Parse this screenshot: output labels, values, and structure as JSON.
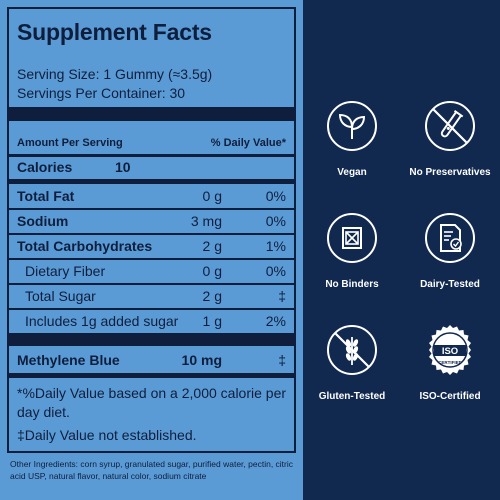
{
  "facts": {
    "title": "Supplement Facts",
    "serving_size": "Serving Size: 1 Gummy (≈3.5g)",
    "servings_per_container": "Servings Per Container: 30",
    "amount_per_serving": "Amount Per Serving",
    "daily_value_header": "% Daily Value*",
    "calories_label": "Calories",
    "calories_value": "10",
    "rows": [
      {
        "name": "Total Fat",
        "amount": "0 g",
        "dv": "0%"
      },
      {
        "name": "Sodium",
        "amount": "3 mg",
        "dv": "0%"
      },
      {
        "name": "Total Carbohydrates",
        "amount": "2 g",
        "dv": "1%"
      },
      {
        "name": "Dietary Fiber",
        "amount": "0 g",
        "dv": "0%"
      },
      {
        "name": "Total Sugar",
        "amount": "2 g",
        "dv": "‡"
      },
      {
        "name": "Includes 1g added sugar",
        "amount": "1 g",
        "dv": "2%"
      }
    ],
    "active": {
      "name": "Methylene Blue",
      "amount": "10 mg",
      "dv": "‡"
    },
    "footnote_1": "*%Daily Value based on a 2,000 calorie per day diet.",
    "footnote_2": "‡Daily Value not established.",
    "ingredients": "Other Ingredients: corn syrup, granulated sugar, purified water, pectin, citric acid USP, natural flavor, natural color, sodium citrate"
  },
  "badges": [
    {
      "label": "Vegan",
      "icon": "leaf-icon"
    },
    {
      "label": "No Preservatives",
      "icon": "no-test-tube-icon"
    },
    {
      "label": "No Binders",
      "icon": "no-binders-icon"
    },
    {
      "label": "Dairy-Tested",
      "icon": "document-check-icon"
    },
    {
      "label": "Gluten-Tested",
      "icon": "no-wheat-icon"
    },
    {
      "label": "ISO-Certified",
      "icon": "iso-seal-icon"
    }
  ],
  "iso_seal": {
    "text": "ISO",
    "ring_text": "CERTIFIED"
  },
  "colors": {
    "panel_blue": "#5b9bd5",
    "navy": "#11284f",
    "ink": "#0f1e3d",
    "white": "#ffffff"
  }
}
